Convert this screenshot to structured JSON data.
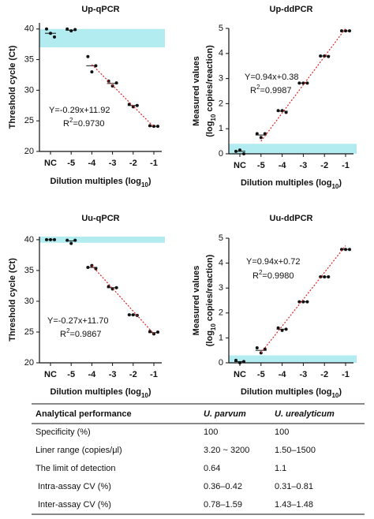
{
  "chart_data": [
    {
      "type": "scatter",
      "title": "Up-qPCR",
      "x_label": [
        "Dilution multiples (log",
        "10",
        ")"
      ],
      "y_label": [
        [
          "Threshold cycle (Ct)"
        ]
      ],
      "categories": [
        "NC",
        "-5",
        "-4",
        "-3",
        "-2",
        "-1"
      ],
      "values": [
        [
          40.0,
          39.3,
          38.7
        ],
        [
          40.0,
          39.7,
          39.9
        ],
        [
          35.5,
          33.0,
          34.0
        ],
        [
          31.5,
          30.7,
          31.2
        ],
        [
          27.7,
          27.3,
          27.5
        ],
        [
          24.2,
          24.1,
          24.1
        ]
      ],
      "means": [
        39.3,
        39.8,
        34.0,
        31.1,
        27.5,
        24.1
      ],
      "ylim": [
        20,
        41
      ],
      "yticks": [
        20,
        25,
        30,
        35,
        40
      ],
      "band": [
        37,
        40
      ],
      "band_color": "#b3ecf0",
      "trend": {
        "x": [
          -4,
          -1
        ],
        "y": [
          34.2,
          24.0
        ]
      },
      "equation": "Y=-0.29x+11.92",
      "r2": [
        "R",
        "2",
        "=0.9730"
      ]
    },
    {
      "type": "scatter",
      "title": "Up-ddPCR",
      "x_label": [
        "Dilution multiples (log",
        "10",
        ")"
      ],
      "y_label": [
        [
          "Measured values"
        ],
        [
          "(log",
          "10",
          " copies/reaction)"
        ]
      ],
      "categories": [
        "NC",
        "-5",
        "-4",
        "-3",
        "-2",
        "-1"
      ],
      "values": [
        [
          0.1,
          0.15,
          0.0
        ],
        [
          0.8,
          0.65,
          0.8
        ],
        [
          1.72,
          1.72,
          1.65
        ],
        [
          2.82,
          2.82,
          2.82
        ],
        [
          3.9,
          3.9,
          3.88
        ],
        [
          4.9,
          4.9,
          4.9
        ]
      ],
      "means": [
        0.1,
        0.75,
        1.7,
        2.82,
        3.9,
        4.9
      ],
      "ylim": [
        0,
        5
      ],
      "yticks": [
        0,
        1,
        2,
        3,
        4,
        5
      ],
      "band": [
        0,
        0.4
      ],
      "band_color": "#b3ecf0",
      "trend": {
        "x": [
          -5,
          -1
        ],
        "y": [
          0.5,
          5.0
        ]
      },
      "equation": "Y=0.94x+0.38",
      "r2": [
        "R",
        "2",
        "=0.9987"
      ]
    },
    {
      "type": "scatter",
      "title": "Uu-qPCR",
      "x_label": [
        "Dilution multiples (log",
        "10",
        ")"
      ],
      "y_label": [
        [
          "Threshold cycle (Ct)"
        ]
      ],
      "categories": [
        "NC",
        "-5",
        "-4",
        "-3",
        "-2",
        "-1"
      ],
      "values": [
        [
          40.0,
          40.0,
          40.0
        ],
        [
          39.9,
          39.4,
          39.9
        ],
        [
          35.5,
          35.8,
          35.3
        ],
        [
          32.4,
          32.0,
          32.2
        ],
        [
          27.8,
          27.8,
          27.7
        ],
        [
          25.1,
          24.7,
          25.0
        ]
      ],
      "means": [
        40.0,
        39.8,
        35.5,
        32.2,
        27.8,
        24.9
      ],
      "ylim": [
        20,
        40.5
      ],
      "yticks": [
        20,
        25,
        30,
        35,
        40
      ],
      "band": [
        39.5,
        40.5
      ],
      "band_color": "#b3ecf0",
      "trend": {
        "x": [
          -4,
          -1
        ],
        "y": [
          35.8,
          24.7
        ]
      },
      "equation": "Y=-0.27x+11.70",
      "r2": [
        "R",
        "2",
        "=0.9867"
      ]
    },
    {
      "type": "scatter",
      "title": "Uu-ddPCR",
      "x_label": [
        "Dilution multiples (log",
        "10",
        ")"
      ],
      "y_label": [
        [
          "Measured values"
        ],
        [
          "(log",
          "10",
          " copies/reaction)"
        ]
      ],
      "categories": [
        "NC",
        "-5",
        "-4",
        "-3",
        "-2",
        "-1"
      ],
      "values": [
        [
          0.1,
          0.0,
          0.05
        ],
        [
          0.6,
          0.4,
          0.55
        ],
        [
          1.4,
          1.3,
          1.35
        ],
        [
          2.45,
          2.45,
          2.45
        ],
        [
          3.45,
          3.45,
          3.45
        ],
        [
          4.55,
          4.55,
          4.55
        ]
      ],
      "means": [
        0.05,
        0.5,
        1.35,
        2.45,
        3.45,
        4.55
      ],
      "ylim": [
        0,
        5
      ],
      "yticks": [
        0,
        1,
        2,
        3,
        4,
        5
      ],
      "band": [
        0,
        0.3
      ],
      "band_color": "#b3ecf0",
      "trend": {
        "x": [
          -5,
          -1
        ],
        "y": [
          0.4,
          4.7
        ]
      },
      "equation": "Y=0.94x+0.72",
      "r2": [
        "R",
        "2",
        "=0.9980"
      ]
    }
  ],
  "table": {
    "header": [
      "Analytical performance",
      "U. parvum",
      "U. urealyticum"
    ],
    "rows": [
      [
        "Specificity (%)",
        "100",
        "100"
      ],
      [
        "Liner range (copies/μl)",
        "3.20 ~ 3200",
        "1.50–1500"
      ],
      [
        "The limit of detection",
        "0.64",
        "1.1"
      ],
      [
        "Intra-assay CV (%)",
        "0.36–0.42",
        "0.31–0.81"
      ],
      [
        "Inter-assay CV (%)",
        "0.78–1.59",
        "1.43–1.48"
      ]
    ]
  }
}
